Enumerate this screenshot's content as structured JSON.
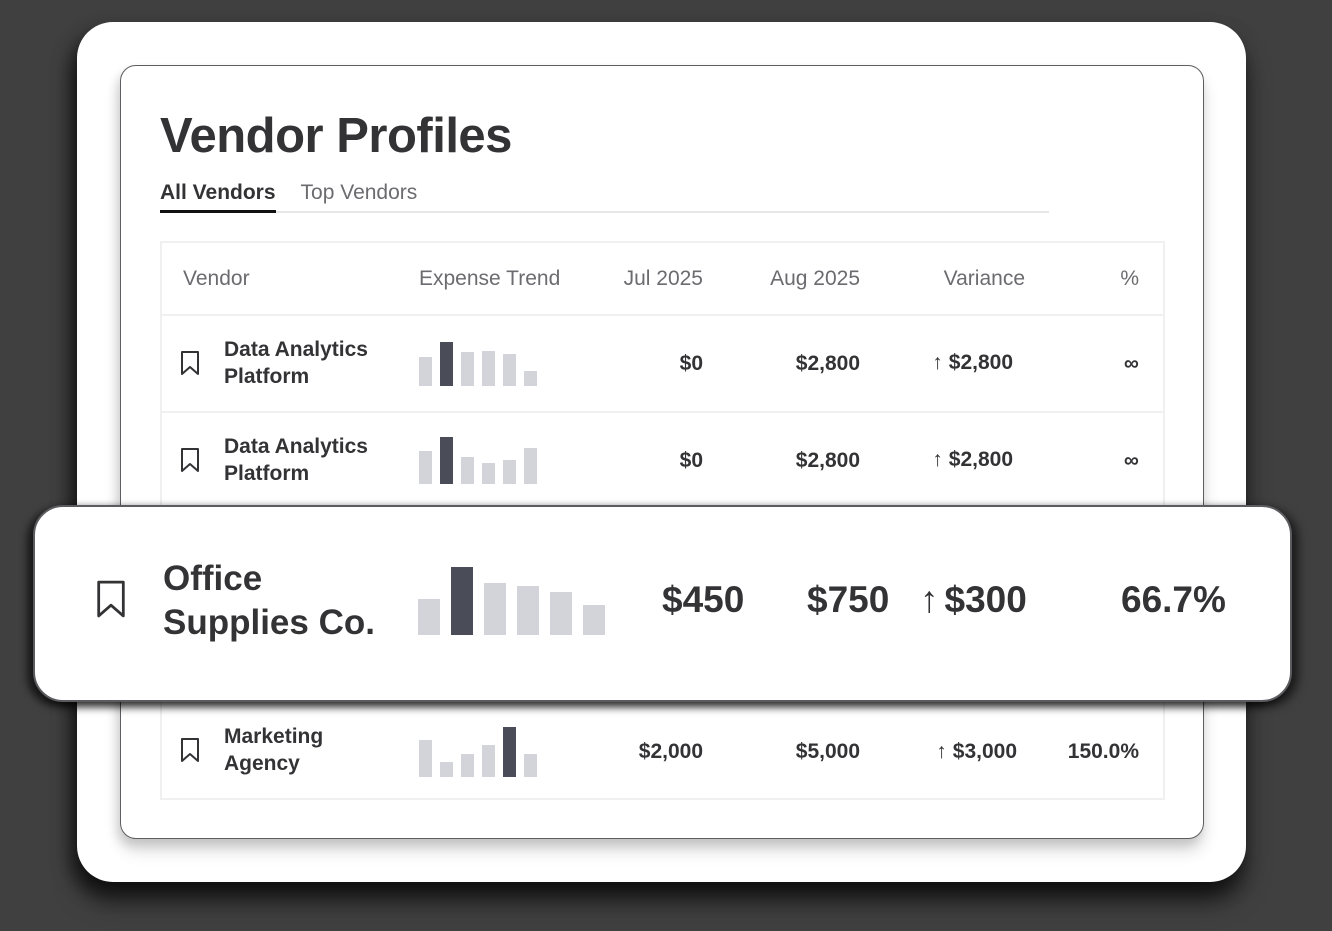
{
  "page": {
    "title": "Vendor Profiles"
  },
  "tabs": [
    {
      "label": "All Vendors",
      "active": true
    },
    {
      "label": "Top Vendors",
      "active": false
    }
  ],
  "table": {
    "headers": [
      "Vendor",
      "Expense Trend",
      "Jul 2025",
      "Aug 2025",
      "Variance",
      "%"
    ],
    "rows": [
      {
        "vendor": "Data Analytics Platform",
        "vendor_line1": "Data Analytics",
        "vendor_line2": "Platform",
        "trend": [
          29,
          44,
          34,
          35,
          32,
          15
        ],
        "trend_highlight_index": 1,
        "jul": "$0",
        "aug": "$2,800",
        "variance_arrow": "↑",
        "variance": "$2,800",
        "pct": "∞"
      },
      {
        "vendor": "Data Analytics Platform",
        "vendor_line1": "Data Analytics",
        "vendor_line2": "Platform",
        "trend": [
          33,
          47,
          27,
          21,
          24,
          36
        ],
        "trend_highlight_index": 1,
        "jul": "$0",
        "aug": "$2,800",
        "variance_arrow": "↑",
        "variance": "$2,800",
        "pct": "∞"
      },
      {
        "vendor": "Office Supplies Co.",
        "vendor_line1": "Office",
        "vendor_line2": "Supplies Co.",
        "trend": [
          36,
          68,
          52,
          49,
          43,
          30
        ],
        "trend_highlight_index": 1,
        "jul": "$450",
        "aug": "$750",
        "variance_arrow": "↑",
        "variance": "$300",
        "pct": "66.7%",
        "highlighted": true
      },
      {
        "vendor": "Marketing Agency",
        "vendor_line1": "Marketing",
        "vendor_line2": "Agency",
        "trend": [
          37,
          15,
          23,
          32,
          50,
          23
        ],
        "trend_highlight_index": 4,
        "jul": "$2,000",
        "aug": "$5,000",
        "variance_arrow": "↑",
        "variance": "$3,000",
        "pct": "150.0%"
      }
    ]
  },
  "icons": {
    "bookmark": "bookmark-icon",
    "variance_up": "arrow-up-icon"
  },
  "colors": {
    "background": "#404040",
    "bar": "#d2d4da",
    "bar_highlight": "#4a4d57",
    "text": "#333336",
    "muted": "#6b6b70"
  }
}
